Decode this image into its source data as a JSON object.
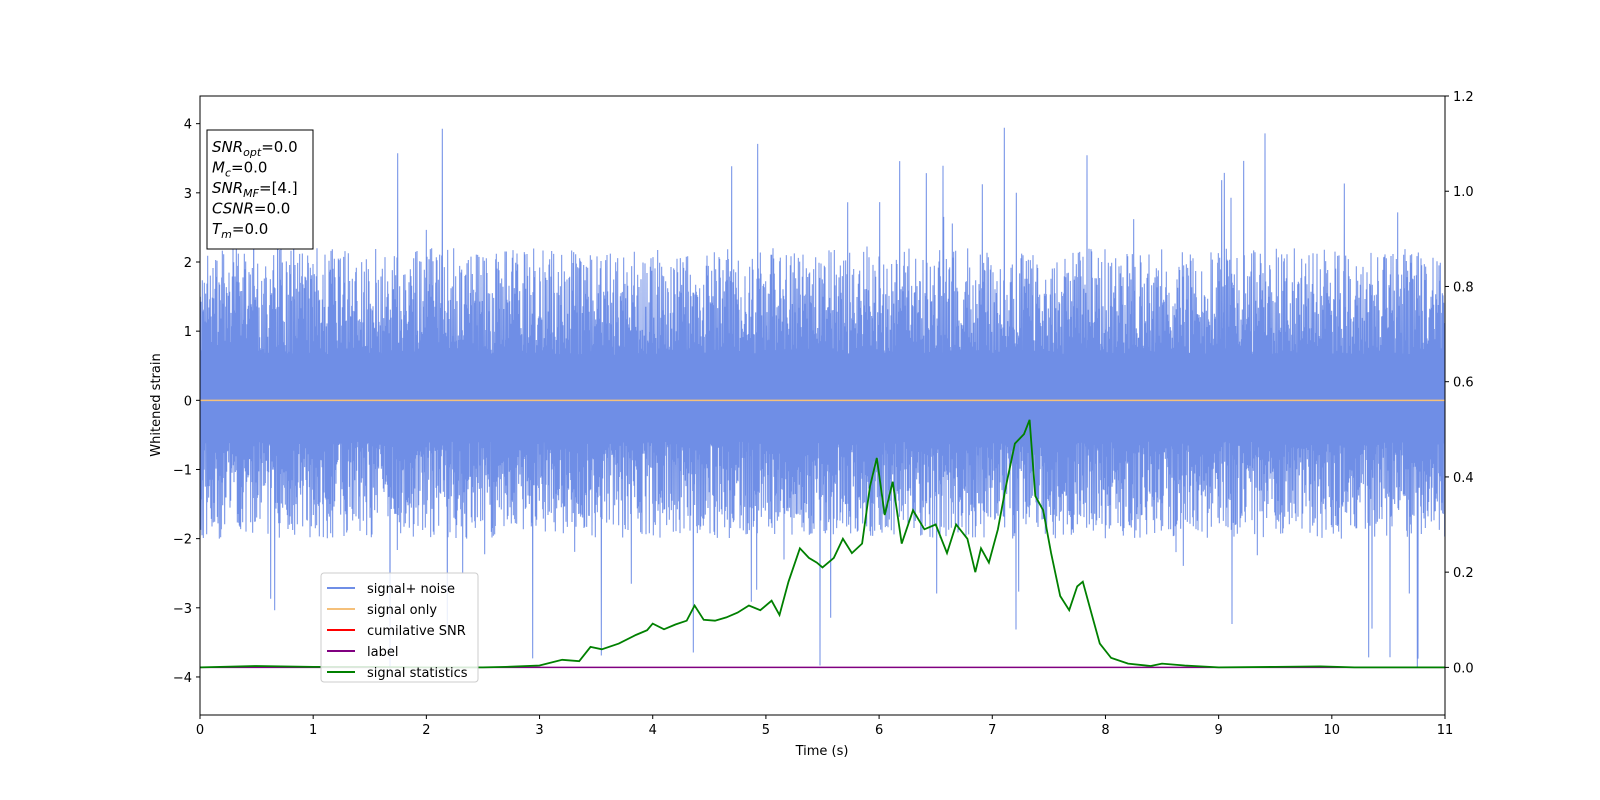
{
  "chart_data": {
    "type": "line",
    "xlabel": "Time (s)",
    "ylabel": "Whitened strain",
    "xlim": [
      0,
      11
    ],
    "ylim": [
      -4.55,
      4.4
    ],
    "y2lim": [
      -0.1,
      1.2
    ],
    "xticks": [
      "0",
      "1",
      "2",
      "3",
      "4",
      "5",
      "6",
      "7",
      "8",
      "9",
      "10",
      "11"
    ],
    "yticks": [
      "−4",
      "−3",
      "−2",
      "−1",
      "0",
      "1",
      "2",
      "3",
      "4"
    ],
    "y2ticks": [
      "0.0",
      "0.2",
      "0.4",
      "0.6",
      "0.8",
      "1.0",
      "1.2"
    ],
    "legend_position": "lower-left",
    "grid": false,
    "annotation_box": {
      "lines": [
        {
          "base": "SNR",
          "sub": "opt",
          "rest": "=0.0"
        },
        {
          "base": "M",
          "sub": "c",
          "rest": "=0.0"
        },
        {
          "base": "SNR",
          "sub": "MF",
          "rest": "=[4.]"
        },
        {
          "base": "CSNR",
          "sub": "",
          "rest": "=0.0"
        },
        {
          "base": "T",
          "sub": "m",
          "rest": "=0.0"
        }
      ]
    },
    "series": [
      {
        "name": "signal+ noise",
        "color": "#6f8ee6",
        "axis": "left",
        "kind": "noise",
        "envelope": {
          "typical_max": 2.2,
          "typical_min": -2.0,
          "peak_max": 3.95,
          "peak_min": -4.15
        }
      },
      {
        "name": "signal only",
        "color": "#f5c07a",
        "axis": "left",
        "x": [
          0,
          11
        ],
        "y": [
          0,
          0
        ]
      },
      {
        "name": "cumilative SNR",
        "color": "#ff0000",
        "axis": "right",
        "x": [],
        "y": []
      },
      {
        "name": "label",
        "color": "#800080",
        "axis": "right",
        "x": [
          0,
          11
        ],
        "y": [
          0,
          0
        ]
      },
      {
        "name": "signal statistics",
        "color": "#008000",
        "axis": "right",
        "x": [
          0,
          0.5,
          1.0,
          1.5,
          2.0,
          2.5,
          2.7,
          3.0,
          3.2,
          3.35,
          3.45,
          3.55,
          3.7,
          3.85,
          3.95,
          4.0,
          4.1,
          4.2,
          4.3,
          4.37,
          4.45,
          4.55,
          4.65,
          4.75,
          4.85,
          4.95,
          5.05,
          5.12,
          5.2,
          5.3,
          5.38,
          5.45,
          5.5,
          5.6,
          5.68,
          5.76,
          5.85,
          5.92,
          5.98,
          6.05,
          6.12,
          6.2,
          6.3,
          6.4,
          6.5,
          6.6,
          6.68,
          6.78,
          6.85,
          6.9,
          6.97,
          7.05,
          7.12,
          7.2,
          7.28,
          7.33,
          7.38,
          7.45,
          7.52,
          7.6,
          7.68,
          7.75,
          7.8,
          7.88,
          7.95,
          8.05,
          8.2,
          8.4,
          8.5,
          8.7,
          9.0,
          9.5,
          9.9,
          10.2,
          11.0
        ],
        "y": [
          0.0,
          0.003,
          0.001,
          0.001,
          0.0,
          0.0,
          0.001,
          0.004,
          0.016,
          0.013,
          0.043,
          0.038,
          0.05,
          0.068,
          0.078,
          0.092,
          0.08,
          0.09,
          0.098,
          0.13,
          0.1,
          0.098,
          0.105,
          0.115,
          0.13,
          0.12,
          0.14,
          0.11,
          0.18,
          0.25,
          0.23,
          0.22,
          0.21,
          0.23,
          0.27,
          0.24,
          0.26,
          0.38,
          0.44,
          0.32,
          0.39,
          0.26,
          0.33,
          0.29,
          0.3,
          0.24,
          0.3,
          0.27,
          0.2,
          0.25,
          0.22,
          0.29,
          0.38,
          0.47,
          0.49,
          0.52,
          0.36,
          0.33,
          0.24,
          0.15,
          0.12,
          0.17,
          0.18,
          0.11,
          0.05,
          0.02,
          0.008,
          0.003,
          0.008,
          0.004,
          0.0,
          0.001,
          0.002,
          0.0,
          0.0
        ]
      }
    ]
  }
}
